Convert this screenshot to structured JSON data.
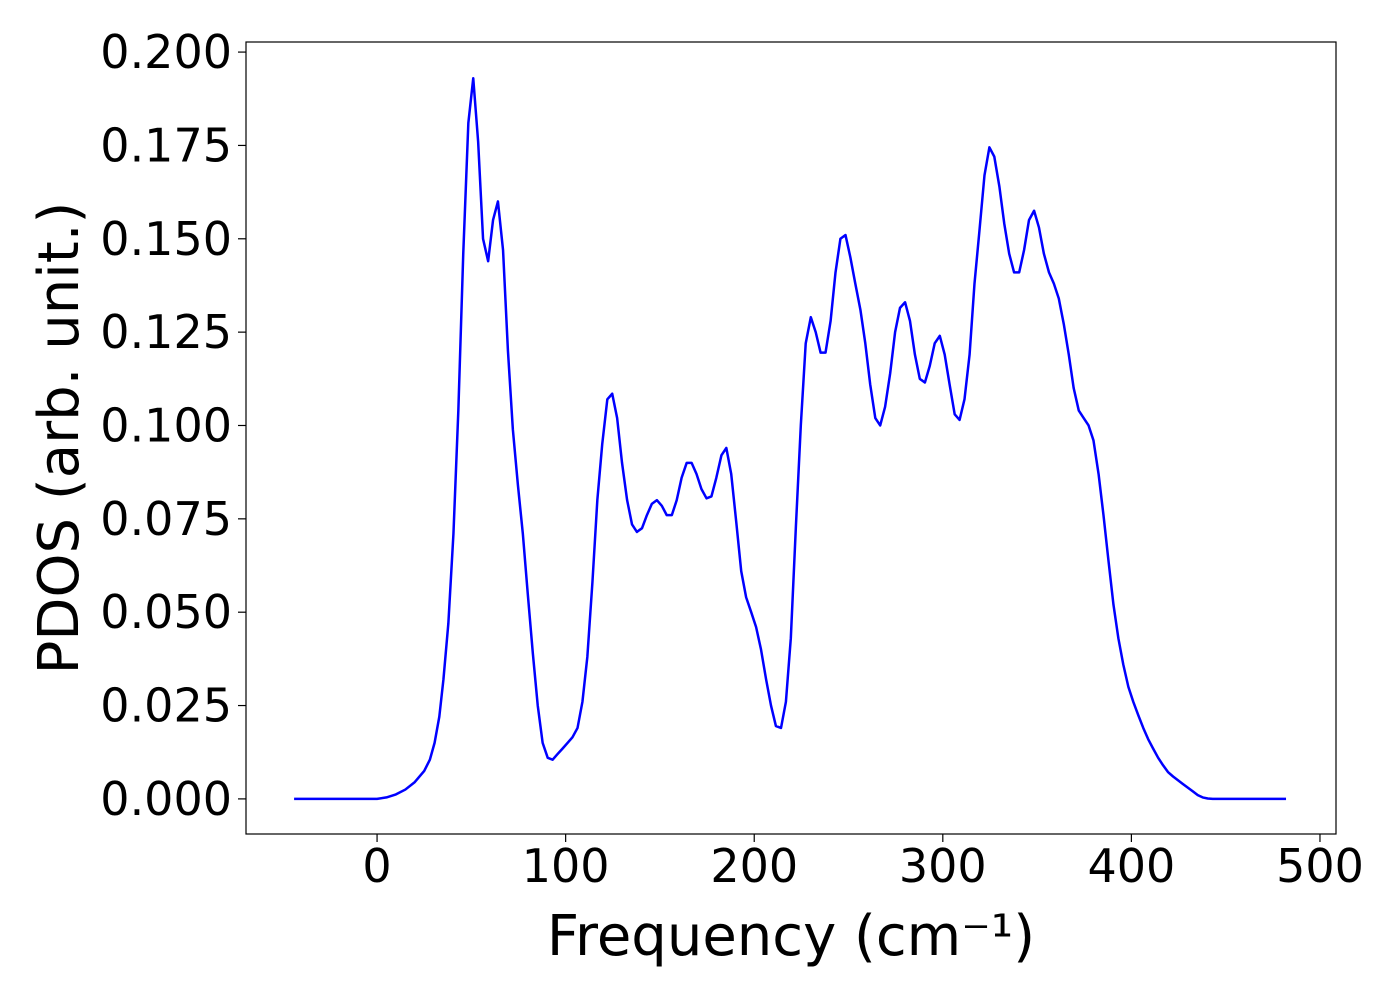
{
  "chart_data": {
    "type": "line",
    "xlabel": "Frequency (cm⁻¹)",
    "ylabel": "PDOS (arb. unit.)",
    "xlim": [
      -69.5,
      508.5
    ],
    "ylim": [
      -0.0094,
      0.2027
    ],
    "xticks": [
      0,
      100,
      200,
      300,
      400,
      500
    ],
    "yticks": [
      {
        "value": 0,
        "label": "0.000"
      },
      {
        "value": 0.025,
        "label": "0.025"
      },
      {
        "value": 0.05,
        "label": "0.050"
      },
      {
        "value": 0.075,
        "label": "0.075"
      },
      {
        "value": 0.1,
        "label": "0.100"
      },
      {
        "value": 0.125,
        "label": "0.125"
      },
      {
        "value": 0.15,
        "label": "0.150"
      },
      {
        "value": 0.175,
        "label": "0.175"
      },
      {
        "value": 0.2,
        "label": "0.200"
      }
    ],
    "grid": false,
    "x": [
      -44,
      -20,
      0,
      5,
      10,
      15,
      20,
      25,
      28,
      30.5,
      33,
      35.2,
      37.8,
      40.5,
      43.1,
      45.7,
      48.4,
      51.0,
      53.6,
      56.2,
      58.9,
      61.5,
      64.1,
      66.8,
      69.4,
      72.0,
      74.7,
      77.3,
      79.9,
      82.6,
      85.2,
      87.8,
      90.5,
      93.1,
      95.7,
      98.4,
      101.0,
      103.6,
      106.3,
      108.9,
      111.5,
      114.2,
      116.8,
      119.4,
      122.1,
      124.7,
      127.3,
      129.9,
      132.6,
      135.2,
      137.8,
      140.5,
      143.1,
      145.7,
      148.4,
      151.0,
      153.6,
      156.3,
      158.9,
      161.5,
      164.2,
      166.8,
      169.4,
      172.0,
      174.7,
      177.3,
      179.9,
      182.6,
      185.2,
      187.8,
      190.5,
      193.1,
      195.7,
      198.4,
      201.0,
      203.6,
      206.3,
      208.9,
      211.5,
      214.2,
      216.8,
      219.4,
      222.1,
      224.7,
      227.3,
      230.0,
      232.6,
      235.2,
      237.8,
      240.5,
      243.1,
      245.7,
      248.4,
      251.0,
      253.6,
      256.3,
      258.9,
      261.5,
      264.2,
      266.8,
      269.4,
      272.1,
      274.7,
      277.3,
      280.0,
      282.6,
      285.2,
      287.8,
      290.5,
      293.1,
      295.7,
      298.4,
      301.0,
      303.6,
      306.3,
      308.9,
      311.5,
      314.2,
      316.8,
      319.4,
      322.1,
      324.7,
      327.3,
      330.0,
      332.6,
      335.2,
      337.8,
      340.5,
      343.1,
      345.7,
      348.4,
      351.0,
      353.6,
      356.3,
      358.9,
      361.5,
      364.2,
      366.8,
      369.4,
      372.1,
      374.7,
      377.3,
      379.9,
      382.6,
      385.2,
      387.8,
      390.5,
      393.1,
      395.7,
      398.4,
      401.0,
      403.6,
      406.3,
      408.9,
      411.5,
      414.2,
      416.8,
      419.4,
      422.1,
      424.7,
      427.3,
      430.0,
      432.6,
      435.2,
      437.8,
      440.5,
      443.1,
      460,
      482
    ],
    "series": [
      {
        "color": "#0000ff",
        "values": [
          0,
          0,
          0,
          0.0004,
          0.0012,
          0.0025,
          0.0045,
          0.0075,
          0.0105,
          0.015,
          0.022,
          0.032,
          0.047,
          0.071,
          0.104,
          0.146,
          0.181,
          0.193,
          0.176,
          0.15,
          0.144,
          0.155,
          0.16,
          0.147,
          0.12,
          0.099,
          0.084,
          0.071,
          0.055,
          0.039,
          0.025,
          0.015,
          0.011,
          0.0105,
          0.012,
          0.0135,
          0.015,
          0.0165,
          0.019,
          0.026,
          0.038,
          0.058,
          0.08,
          0.095,
          0.107,
          0.1085,
          0.102,
          0.09,
          0.08,
          0.0735,
          0.0715,
          0.0725,
          0.076,
          0.079,
          0.08,
          0.0785,
          0.076,
          0.076,
          0.08,
          0.086,
          0.09,
          0.09,
          0.087,
          0.083,
          0.0805,
          0.081,
          0.086,
          0.092,
          0.094,
          0.087,
          0.074,
          0.061,
          0.054,
          0.05,
          0.046,
          0.04,
          0.032,
          0.025,
          0.0195,
          0.019,
          0.026,
          0.043,
          0.073,
          0.1,
          0.122,
          0.129,
          0.125,
          0.1195,
          0.1195,
          0.128,
          0.141,
          0.15,
          0.151,
          0.145,
          0.138,
          0.131,
          0.122,
          0.111,
          0.102,
          0.1,
          0.105,
          0.114,
          0.125,
          0.1315,
          0.133,
          0.128,
          0.119,
          0.1125,
          0.1115,
          0.116,
          0.122,
          0.124,
          0.119,
          0.111,
          0.103,
          0.1015,
          0.107,
          0.119,
          0.138,
          0.152,
          0.167,
          0.1745,
          0.172,
          0.164,
          0.154,
          0.146,
          0.141,
          0.141,
          0.147,
          0.155,
          0.1575,
          0.153,
          0.146,
          0.141,
          0.138,
          0.134,
          0.127,
          0.119,
          0.11,
          0.104,
          0.102,
          0.1,
          0.096,
          0.087,
          0.076,
          0.064,
          0.052,
          0.043,
          0.036,
          0.03,
          0.026,
          0.0225,
          0.019,
          0.016,
          0.0135,
          0.011,
          0.009,
          0.0072,
          0.006,
          0.005,
          0.004,
          0.003,
          0.002,
          0.001,
          0.0004,
          0.0001,
          0,
          0,
          0
        ]
      }
    ]
  }
}
